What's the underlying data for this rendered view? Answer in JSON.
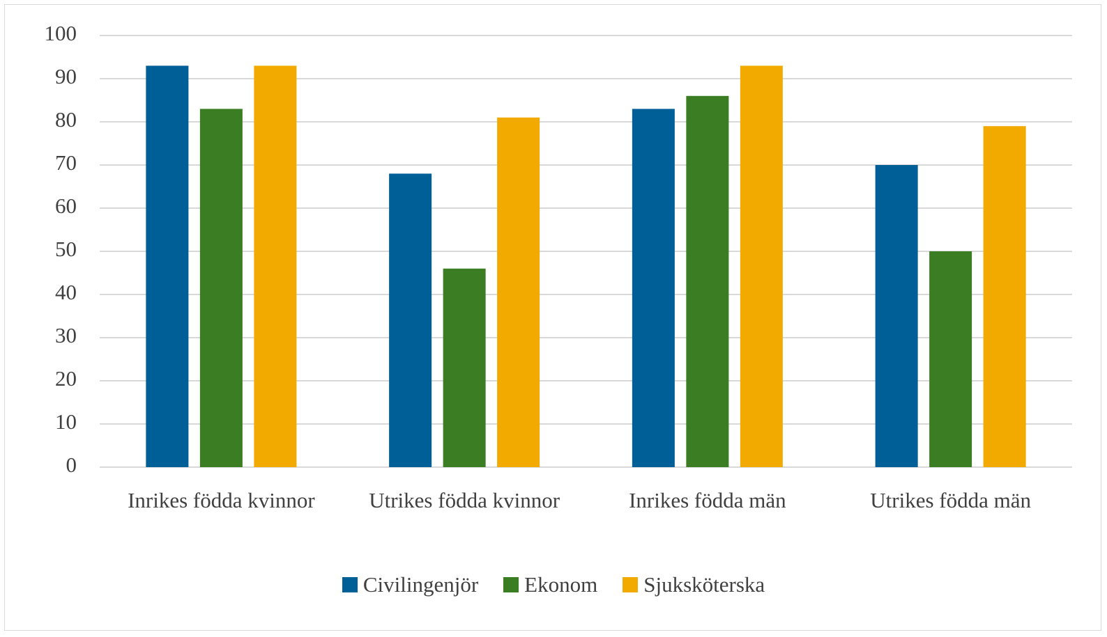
{
  "chart_data": {
    "type": "bar",
    "categories": [
      "Inrikes födda kvinnor",
      "Utrikes födda kvinnor",
      "Inrikes födda män",
      "Utrikes födda män"
    ],
    "series": [
      {
        "name": "Civilingenjör",
        "color": "#005f96",
        "values": [
          93,
          68,
          83,
          70
        ]
      },
      {
        "name": "Ekonom",
        "color": "#3a7d22",
        "values": [
          83,
          46,
          86,
          50
        ]
      },
      {
        "name": "Sjuksköterska",
        "color": "#f2a900",
        "values": [
          93,
          81,
          93,
          79
        ]
      }
    ],
    "ylim": [
      0,
      100
    ],
    "yticks": [
      0,
      10,
      20,
      30,
      40,
      50,
      60,
      70,
      80,
      90,
      100
    ],
    "grid": true,
    "legend": "bottom"
  }
}
